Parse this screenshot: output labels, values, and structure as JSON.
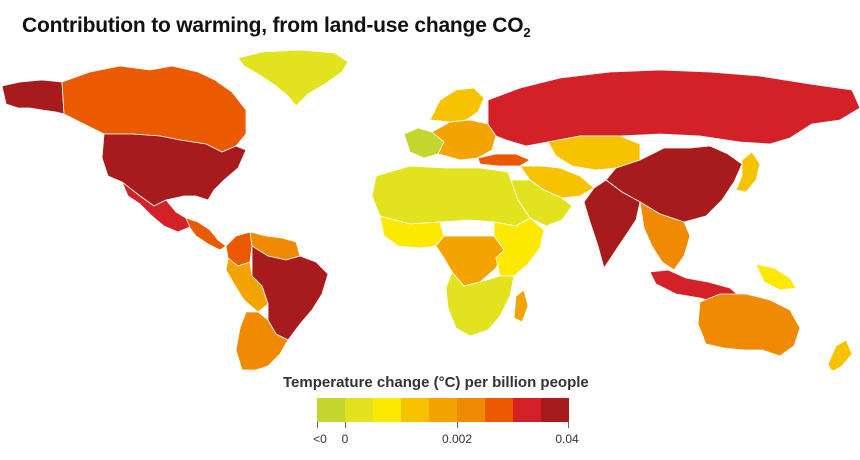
{
  "header": {
    "title_prefix": "Contribution to warming, from land-use change CO",
    "title_subscript": "2"
  },
  "legend": {
    "title": "Temperature change (°C) per billion people",
    "colors": [
      "#c2d62e",
      "#e3e21f",
      "#fde800",
      "#f7c200",
      "#f4a400",
      "#f08a00",
      "#eb5a00",
      "#d42128",
      "#a81b1d"
    ],
    "tick_labels": [
      "<0",
      "0",
      "0.002",
      "0.04"
    ]
  },
  "map": {
    "regions": [
      {
        "name": "Greenland",
        "color": "#e3e21f"
      },
      {
        "name": "Alaska",
        "color": "#a81b1d"
      },
      {
        "name": "Canada",
        "color": "#eb5a00"
      },
      {
        "name": "United States",
        "color": "#a81b1d"
      },
      {
        "name": "Mexico",
        "color": "#d42128"
      },
      {
        "name": "Central America",
        "color": "#eb5a00"
      },
      {
        "name": "Colombia",
        "color": "#eb5a00"
      },
      {
        "name": "Venezuela",
        "color": "#f08a00"
      },
      {
        "name": "Brazil",
        "color": "#a81b1d"
      },
      {
        "name": "Peru",
        "color": "#f4a400"
      },
      {
        "name": "Argentina",
        "color": "#f08a00"
      },
      {
        "name": "Western Europe",
        "color": "#c2d62e"
      },
      {
        "name": "Europe",
        "color": "#f4a400"
      },
      {
        "name": "Scandinavia",
        "color": "#f7c200"
      },
      {
        "name": "Russia",
        "color": "#d42128"
      },
      {
        "name": "Turkey",
        "color": "#eb5a00"
      },
      {
        "name": "Middle East",
        "color": "#f7c200"
      },
      {
        "name": "Arabia",
        "color": "#e3e21f"
      },
      {
        "name": "Central Asia",
        "color": "#f7c200"
      },
      {
        "name": "China",
        "color": "#a81b1d"
      },
      {
        "name": "India",
        "color": "#a81b1d"
      },
      {
        "name": "Southeast Asia",
        "color": "#f08a00"
      },
      {
        "name": "Japan",
        "color": "#f7c200"
      },
      {
        "name": "Indonesia",
        "color": "#d42128"
      },
      {
        "name": "Papua New Guinea",
        "color": "#fde800"
      },
      {
        "name": "North Africa",
        "color": "#e3e21f"
      },
      {
        "name": "West Africa",
        "color": "#fde800"
      },
      {
        "name": "Central Africa",
        "color": "#f4a400"
      },
      {
        "name": "East Africa",
        "color": "#fde800"
      },
      {
        "name": "Southern Africa",
        "color": "#e3e21f"
      },
      {
        "name": "Madagascar",
        "color": "#f4a400"
      },
      {
        "name": "Australia",
        "color": "#f08a00"
      },
      {
        "name": "New Zealand",
        "color": "#f7c200"
      }
    ]
  }
}
